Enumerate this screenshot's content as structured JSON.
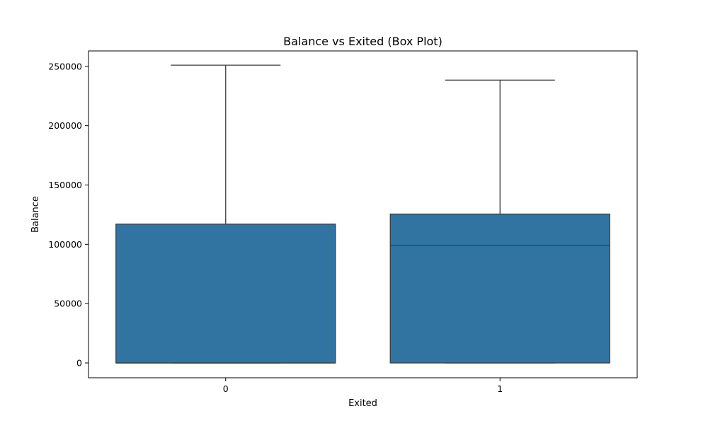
{
  "chart_data": {
    "type": "box",
    "title": "Balance vs Exited (Box Plot)",
    "xlabel": "Exited",
    "ylabel": "Balance",
    "categories": [
      "0",
      "1"
    ],
    "yticks": [
      0,
      50000,
      100000,
      150000,
      200000,
      250000
    ],
    "ytick_labels": [
      "0",
      "50000",
      "100000",
      "150000",
      "200000",
      "250000"
    ],
    "ylim": [
      -12500,
      263000
    ],
    "grid": false,
    "box_color": "#3274a1",
    "line_color": "#3d3d3d",
    "boxes": [
      {
        "category": "0",
        "whisker_low": 0,
        "q1": 0,
        "median": 0,
        "q3": 117000,
        "whisker_high": 251000
      },
      {
        "category": "1",
        "whisker_low": 0,
        "q1": 0,
        "median": 99000,
        "q3": 125500,
        "whisker_high": 238400
      }
    ]
  }
}
